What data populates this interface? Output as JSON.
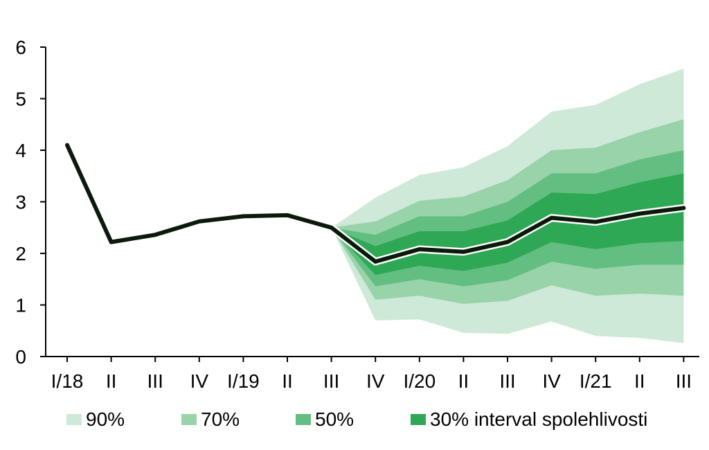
{
  "chart_data": {
    "type": "line",
    "title": "",
    "xlabel": "",
    "ylabel": "",
    "ylim": [
      0,
      6
    ],
    "yticks": [
      0,
      1,
      2,
      3,
      4,
      5,
      6
    ],
    "categories": [
      "I/18",
      "II",
      "III",
      "IV",
      "I/19",
      "II",
      "III",
      "IV",
      "I/20",
      "II",
      "III",
      "IV",
      "I/21",
      "II",
      "III"
    ],
    "series": [
      {
        "values": [
          4.1,
          2.22,
          2.36,
          2.62,
          2.72,
          2.74,
          2.5,
          1.84,
          2.08,
          2.03,
          2.22,
          2.69,
          2.61,
          2.77,
          2.88
        ]
      }
    ],
    "fan_start_index": 6,
    "fan_bands": [
      {
        "level": "90%",
        "lower": [
          2.5,
          0.7,
          0.72,
          0.46,
          0.44,
          0.68,
          0.4,
          0.36,
          0.26
        ],
        "upper": [
          2.5,
          3.08,
          3.52,
          3.67,
          4.08,
          4.75,
          4.88,
          5.28,
          5.58
        ]
      },
      {
        "level": "70%",
        "lower": [
          2.5,
          1.1,
          1.18,
          1.02,
          1.08,
          1.38,
          1.18,
          1.22,
          1.18
        ],
        "upper": [
          2.5,
          2.62,
          3.02,
          3.1,
          3.42,
          4.0,
          4.05,
          4.35,
          4.6
        ]
      },
      {
        "level": "50%",
        "lower": [
          2.5,
          1.36,
          1.5,
          1.36,
          1.48,
          1.84,
          1.7,
          1.78,
          1.78
        ],
        "upper": [
          2.5,
          2.36,
          2.72,
          2.72,
          3.0,
          3.55,
          3.55,
          3.82,
          4.0
        ]
      },
      {
        "level": "30%",
        "lower": [
          2.5,
          1.58,
          1.76,
          1.66,
          1.82,
          2.22,
          2.08,
          2.2,
          2.24
        ],
        "upper": [
          2.5,
          2.14,
          2.43,
          2.43,
          2.64,
          3.18,
          3.15,
          3.38,
          3.55
        ]
      }
    ],
    "legend": {
      "position": "bottom",
      "items": [
        "90%",
        "70%",
        "50%",
        "30% interval spolehlivosti"
      ]
    },
    "colors": {
      "band_90": "#cfe9d8",
      "band_70": "#98d3aa",
      "band_50": "#63be81",
      "band_30": "#2fa855",
      "line": "#0b1a0b",
      "line_outline": "#ffffff",
      "axis": "#000000"
    },
    "grid": false
  }
}
